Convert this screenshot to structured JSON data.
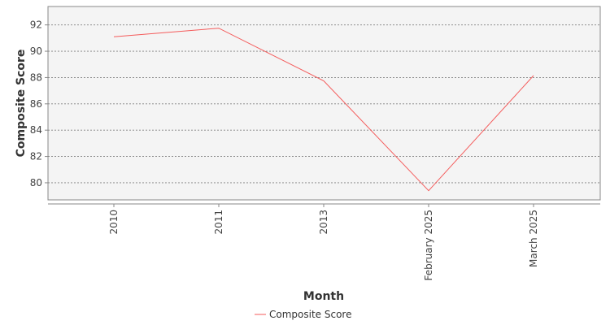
{
  "chart_data": {
    "type": "line",
    "title": "",
    "xlabel": "Month",
    "ylabel": "Composite Score",
    "categories": [
      "2010",
      "2011",
      "2013",
      "February 2025",
      "March 2025"
    ],
    "series": [
      {
        "name": "Composite Score",
        "values": [
          91.1,
          91.75,
          87.75,
          79.4,
          88.15
        ],
        "color": "#f45b5b"
      }
    ],
    "ylim": [
      78.7,
      93.4
    ],
    "yticks": [
      80,
      82,
      84,
      86,
      88,
      90,
      92
    ],
    "grid": true,
    "legend_position": "bottom-center",
    "colors": {
      "plot_background": "#f4f4f4",
      "gridline": "#808080",
      "axis": "#888888"
    }
  }
}
